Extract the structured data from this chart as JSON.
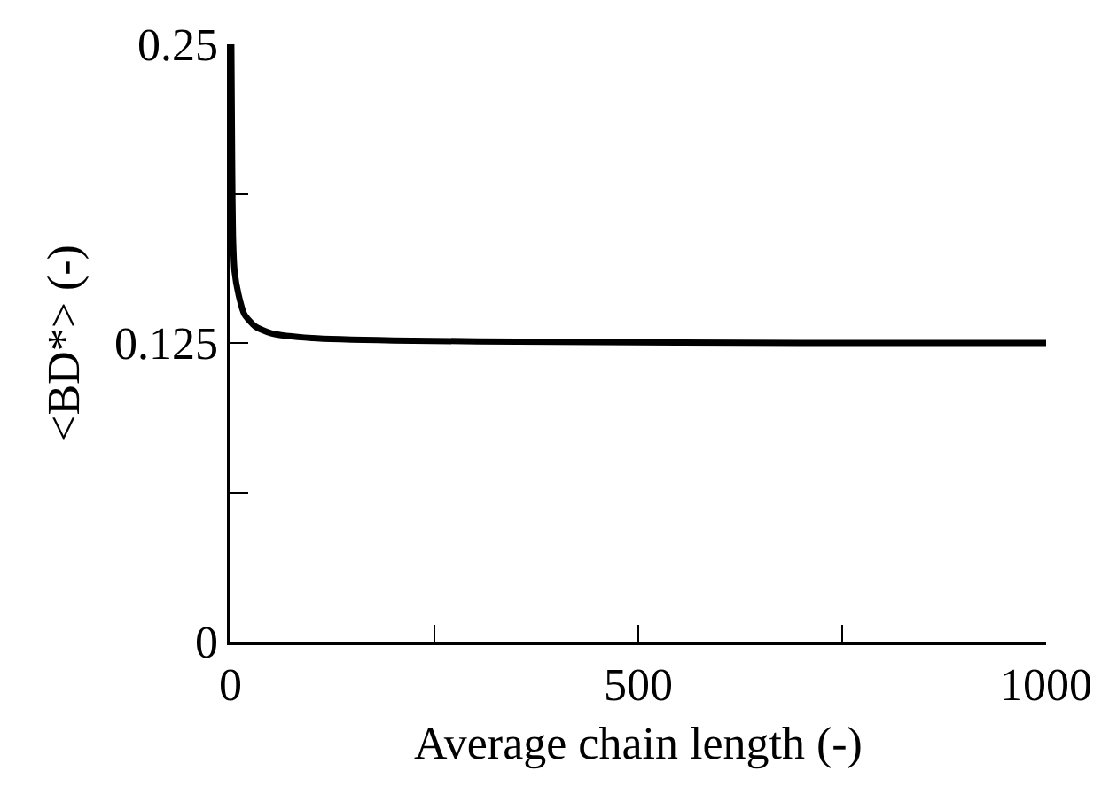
{
  "chart_data": {
    "type": "line",
    "xlabel": "Average chain length (-)",
    "ylabel": "<BD*> (-)",
    "x": [
      1,
      2,
      3,
      5,
      10,
      17,
      30,
      50,
      100,
      200,
      400,
      700,
      1000
    ],
    "series": [
      {
        "color": "#000000",
        "values": [
          0.25,
          0.2,
          0.17,
          0.155,
          0.145,
          0.137,
          0.132,
          0.129,
          0.127,
          0.126,
          0.1255,
          0.125,
          0.125
        ]
      }
    ],
    "xlim": [
      0,
      1000
    ],
    "ylim": [
      0,
      0.25
    ],
    "xticks": [
      0,
      {
        "value": 250,
        "label": null
      },
      500,
      {
        "value": 750,
        "label": null
      },
      1000
    ],
    "yticks": [
      0,
      {
        "value": 0.0625,
        "label": null
      },
      0.125,
      {
        "value": 0.1875,
        "label": null
      },
      0.25
    ],
    "marker": "none",
    "line_style": "solid"
  }
}
